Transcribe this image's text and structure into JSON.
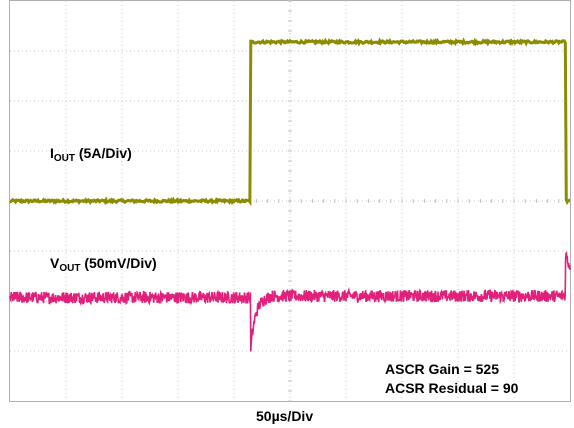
{
  "chart_data": {
    "type": "line",
    "title": "",
    "xlabel": "50µs/Div",
    "ylabel": "",
    "grid": true,
    "divisions": {
      "x": 10,
      "y": 8
    },
    "x_unit": "div",
    "y_unit": "div",
    "xlim": [
      0,
      10
    ],
    "ylim": [
      -4,
      4
    ],
    "series": [
      {
        "name": "IOUT",
        "scale": "5A/Div",
        "color": "#8c8c00",
        "x": [
          0.0,
          4.3,
          4.3,
          4.32,
          10.0
        ],
        "y": [
          -0.03,
          -0.03,
          0.0,
          0.0,
          0.0
        ],
        "noise": 0.05,
        "steps": [
          {
            "x0": 0.0,
            "x1": 4.3,
            "level": 0.0
          },
          {
            "x0": 4.3,
            "x1": 9.92,
            "level": 3.18
          },
          {
            "x0": 9.92,
            "x1": 14.0,
            "level": 0.0
          }
        ]
      },
      {
        "name": "VOUT",
        "scale": "50mV/Div",
        "color": "#e0207a",
        "steps": [
          {
            "x0": 0.0,
            "x1": 4.3,
            "level": -1.93
          },
          {
            "x0": 4.3,
            "x1": 9.92,
            "level": -1.9
          },
          {
            "x0": 9.92,
            "x1": 14.0,
            "level": -1.93
          }
        ],
        "transients": [
          {
            "x": 4.3,
            "peak": -2.95,
            "settle": 0.35
          },
          {
            "x": 9.92,
            "peak": -1.05,
            "settle": 0.9
          }
        ],
        "noise": 0.24
      }
    ],
    "annotations": {
      "iout_label_main": "I",
      "iout_label_sub": "OUT",
      "iout_label_rest": " (5A/Div)",
      "vout_label_main": "V",
      "vout_label_sub": "OUT",
      "vout_label_rest": " (50mV/Div)",
      "gain": "ASCR Gain = 525",
      "residual": "ACSR Residual = 90",
      "timebase": "50µs/Div"
    }
  }
}
